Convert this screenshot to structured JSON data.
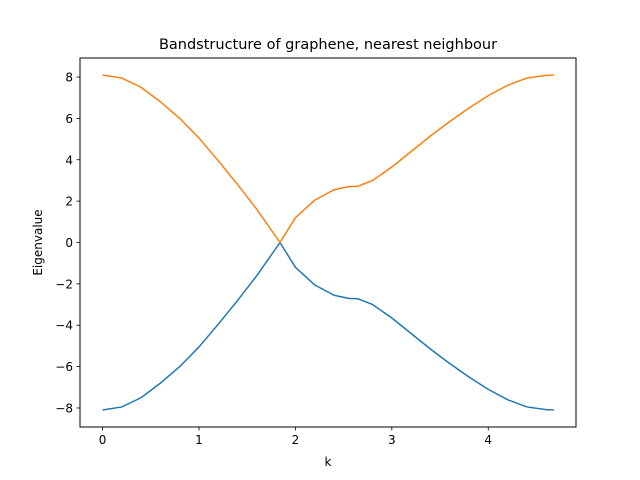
{
  "chart_data": {
    "type": "line",
    "title": "Bandstructure of graphene, nearest neighbour",
    "xlabel": "k",
    "ylabel": "Eigenvalue",
    "xlim": [
      -0.234,
      4.91
    ],
    "ylim": [
      -8.92,
      8.92
    ],
    "xticks": [
      0,
      1,
      2,
      3,
      4
    ],
    "yticks": [
      -8,
      -6,
      -4,
      -2,
      0,
      2,
      4,
      6,
      8
    ],
    "ytick_labels": [
      "−8",
      "−6",
      "−4",
      "−2",
      "0",
      "2",
      "4",
      "6",
      "8"
    ],
    "grid": false,
    "legend": "none",
    "series": [
      {
        "color": "#1f77b4",
        "x": [
          0,
          0.2,
          0.4,
          0.6,
          0.8,
          1.0,
          1.2,
          1.4,
          1.6,
          1.84,
          2.0,
          2.2,
          2.4,
          2.55,
          2.65,
          2.8,
          3.0,
          3.2,
          3.4,
          3.6,
          3.8,
          4.0,
          4.2,
          4.4,
          4.6,
          4.68
        ],
        "y": [
          -8.1,
          -7.95,
          -7.5,
          -6.8,
          -6.0,
          -5.05,
          -3.95,
          -2.8,
          -1.6,
          0.0,
          -1.2,
          -2.05,
          -2.55,
          -2.7,
          -2.72,
          -3.0,
          -3.65,
          -4.4,
          -5.15,
          -5.85,
          -6.5,
          -7.1,
          -7.6,
          -7.95,
          -8.08,
          -8.1
        ]
      },
      {
        "color": "#ff7f0e",
        "x": [
          0,
          0.2,
          0.4,
          0.6,
          0.8,
          1.0,
          1.2,
          1.4,
          1.6,
          1.84,
          2.0,
          2.2,
          2.4,
          2.55,
          2.65,
          2.8,
          3.0,
          3.2,
          3.4,
          3.6,
          3.8,
          4.0,
          4.2,
          4.4,
          4.6,
          4.68
        ],
        "y": [
          8.1,
          7.95,
          7.5,
          6.8,
          6.0,
          5.05,
          3.95,
          2.8,
          1.6,
          0.0,
          1.2,
          2.05,
          2.55,
          2.7,
          2.72,
          3.0,
          3.65,
          4.4,
          5.15,
          5.85,
          6.5,
          7.1,
          7.6,
          7.95,
          8.08,
          8.1
        ]
      }
    ]
  }
}
